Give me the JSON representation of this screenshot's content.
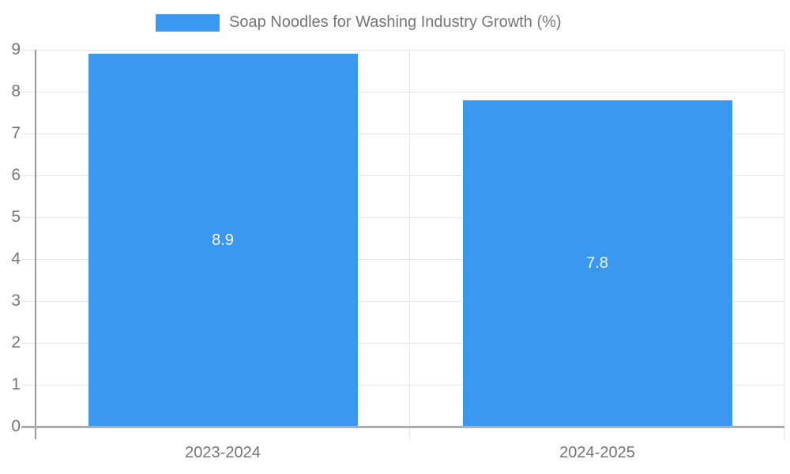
{
  "legend": {
    "label": "Soap Noodles for Washing Industry Growth (%)"
  },
  "colors": {
    "bar": "#3a99ee",
    "grid": "#e6e6e6",
    "axis_x": "#adadad",
    "axis_y": "#999999",
    "tick_text": "#757575",
    "value_label": "#f7f7f7"
  },
  "chart_data": {
    "type": "bar",
    "title": "Soap Noodles for Washing Industry Growth (%)",
    "categories": [
      "2023-2024",
      "2024-2025"
    ],
    "values": [
      8.9,
      7.8
    ],
    "value_labels": [
      "8.9",
      "7.8"
    ],
    "xlabel": "",
    "ylabel": "",
    "ylim": [
      0,
      9
    ],
    "yticks": [
      "0",
      "1",
      "2",
      "3",
      "4",
      "5",
      "6",
      "7",
      "8",
      "9"
    ],
    "grid": true,
    "legend_position": "top",
    "value_label_position": "inside-center"
  }
}
